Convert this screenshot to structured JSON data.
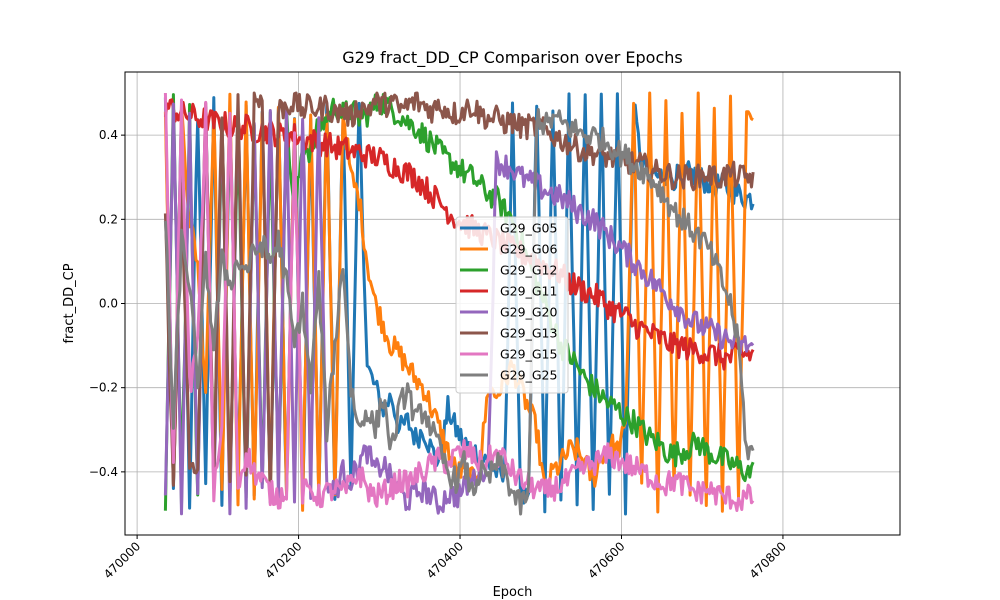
{
  "chart_data": {
    "type": "line",
    "title": "G29 fract_DD_CP Comparison over Epochs",
    "xlabel": "Epoch",
    "ylabel": "fract_DD_CP",
    "xlim": [
      469985,
      470945
    ],
    "ylim": [
      -0.55,
      0.55
    ],
    "x_ticks": [
      470000,
      470200,
      470400,
      470600,
      470800
    ],
    "y_ticks": [
      -0.4,
      -0.2,
      0.0,
      0.2,
      0.4
    ],
    "x_tick_labels": [
      "470000",
      "470200",
      "470400",
      "470600",
      "470800"
    ],
    "y_tick_labels": [
      "−0.4",
      "−0.2",
      "0.0",
      "0.2",
      "0.4"
    ],
    "grid": true,
    "legend": "center",
    "x_start": 470035,
    "x_step": 10,
    "series": [
      {
        "name": "G29_G05",
        "color": "#1f77b4",
        "values": [
          0.48,
          -0.45,
          0.45,
          -0.47,
          0.46,
          -0.42,
          0.47,
          -0.48,
          0.45,
          -0.44,
          0.46,
          -0.45,
          0.47,
          -0.46,
          0.46,
          -0.45,
          0.44,
          -0.47,
          0.42,
          -0.46,
          0.47,
          -0.45,
          0.45,
          -0.43,
          0.47,
          -0.15,
          -0.2,
          -0.25,
          -0.22,
          -0.3,
          -0.28,
          -0.32,
          -0.3,
          -0.35,
          -0.38,
          -0.25,
          -0.3,
          -0.33,
          -0.35,
          -0.36,
          -0.38,
          -0.4,
          -0.42,
          0.45,
          -0.45,
          -0.48,
          0.48,
          -0.47,
          0.47,
          -0.49,
          0.48,
          -0.49,
          0.48,
          -0.48,
          0.49,
          -0.47,
          0.48,
          -0.48,
          0.47,
          0.33,
          0.32,
          0.3,
          0.31,
          0.3,
          0.3,
          0.31,
          0.3,
          0.29,
          0.28,
          0.28,
          0.27,
          0.26,
          0.25
        ]
      },
      {
        "name": "G29_G06",
        "color": "#ff7f0e",
        "values": [
          0.47,
          -0.45,
          0.46,
          0.2,
          0.1,
          -0.2,
          0.48,
          -0.46,
          0.48,
          -0.47,
          0.47,
          -0.48,
          0.45,
          -0.46,
          0.47,
          -0.48,
          0.44,
          -0.47,
          0.46,
          -0.45,
          0.45,
          -0.47,
          0.46,
          0.3,
          0.25,
          0.1,
          0.0,
          -0.05,
          -0.1,
          -0.12,
          -0.15,
          -0.18,
          -0.2,
          -0.25,
          -0.3,
          -0.35,
          -0.4,
          -0.4,
          -0.42,
          -0.38,
          -0.2,
          -0.22,
          -0.18,
          -0.15,
          -0.2,
          -0.25,
          -0.3,
          -0.45,
          -0.4,
          -0.38,
          -0.35,
          -0.35,
          -0.38,
          -0.42,
          -0.36,
          -0.33,
          -0.35,
          -0.3,
          0.48,
          -0.45,
          0.49,
          -0.47,
          0.49,
          -0.46,
          0.48,
          -0.48,
          0.49,
          -0.45,
          0.48,
          -0.47,
          0.48,
          -0.46,
          0.45
        ]
      },
      {
        "name": "G29_G12",
        "color": "#2ca02c",
        "values": [
          -0.48,
          0.47,
          -0.45,
          0.45,
          -0.46,
          0.47,
          -0.44,
          0.45,
          -0.47,
          0.43,
          -0.46,
          0.45,
          -0.45,
          0.44,
          -0.43,
          0.44,
          0.2,
          0.38,
          0.36,
          0.42,
          0.44,
          0.47,
          0.45,
          0.46,
          0.44,
          0.45,
          0.47,
          0.48,
          0.46,
          0.45,
          0.43,
          0.42,
          0.4,
          0.38,
          0.36,
          0.34,
          0.33,
          0.31,
          0.3,
          0.28,
          0.26,
          0.25,
          0.22,
          0.2,
          0.15,
          0.1,
          0.05,
          0.0,
          -0.05,
          -0.1,
          -0.12,
          -0.15,
          -0.18,
          -0.2,
          -0.22,
          -0.24,
          -0.25,
          -0.27,
          -0.28,
          -0.3,
          -0.32,
          -0.33,
          -0.35,
          -0.36,
          -0.35,
          -0.34,
          -0.33,
          -0.35,
          -0.36,
          -0.37,
          -0.38,
          -0.39,
          -0.4
        ]
      },
      {
        "name": "G29_G11",
        "color": "#d62728",
        "values": [
          0.47,
          0.46,
          0.45,
          0.45,
          0.44,
          0.44,
          0.43,
          0.43,
          0.42,
          0.42,
          0.42,
          0.41,
          0.41,
          0.41,
          0.4,
          0.4,
          0.4,
          0.39,
          0.39,
          0.38,
          0.38,
          0.37,
          0.37,
          0.36,
          0.36,
          0.35,
          0.35,
          0.34,
          0.33,
          0.32,
          0.31,
          0.3,
          0.28,
          0.26,
          0.24,
          0.22,
          0.2,
          0.19,
          0.18,
          0.17,
          0.16,
          0.15,
          0.14,
          0.13,
          0.12,
          0.11,
          0.1,
          0.09,
          0.08,
          0.07,
          0.05,
          0.04,
          0.03,
          0.02,
          0.01,
          -0.01,
          -0.02,
          -0.03,
          -0.05,
          -0.06,
          -0.07,
          -0.08,
          -0.09,
          -0.1,
          -0.1,
          -0.11,
          -0.11,
          -0.12,
          -0.12,
          -0.13,
          -0.13,
          -0.12,
          -0.12
        ]
      },
      {
        "name": "G29_G20",
        "color": "#9467bd",
        "values": [
          -0.46,
          0.45,
          -0.47,
          0.44,
          -0.45,
          0.46,
          -0.46,
          0.46,
          -0.48,
          0.47,
          -0.47,
          0.45,
          -0.46,
          0.47,
          -0.44,
          0.45,
          -0.45,
          0.46,
          -0.44,
          0.45,
          -0.43,
          -0.45,
          -0.4,
          -0.42,
          -0.38,
          -0.35,
          -0.4,
          -0.38,
          -0.42,
          -0.45,
          -0.47,
          -0.45,
          -0.44,
          -0.46,
          -0.48,
          -0.45,
          -0.46,
          -0.44,
          -0.42,
          -0.4,
          -0.38,
          0.34,
          0.33,
          0.32,
          0.3,
          0.29,
          0.28,
          0.27,
          0.26,
          0.25,
          0.24,
          0.22,
          0.21,
          0.2,
          0.18,
          0.16,
          0.14,
          0.12,
          0.1,
          0.08,
          0.06,
          0.04,
          0.02,
          0.0,
          -0.02,
          -0.04,
          -0.05,
          -0.06,
          -0.07,
          -0.08,
          -0.09,
          -0.1,
          -0.1
        ]
      },
      {
        "name": "G29_G13",
        "color": "#8c564b",
        "values": [
          0.2,
          -0.45,
          0.3,
          -0.4,
          -0.4,
          0.48,
          -0.42,
          0.47,
          -0.44,
          0.48,
          -0.43,
          0.49,
          0.48,
          -0.45,
          0.46,
          0.47,
          0.48,
          0.46,
          0.47,
          0.46,
          0.47,
          0.45,
          0.46,
          0.44,
          0.47,
          0.46,
          0.48,
          0.47,
          0.48,
          0.46,
          0.47,
          0.48,
          0.47,
          0.46,
          0.47,
          0.46,
          0.45,
          0.46,
          0.47,
          0.45,
          0.44,
          0.44,
          0.43,
          0.43,
          0.42,
          0.42,
          0.42,
          0.41,
          0.4,
          0.39,
          0.38,
          0.37,
          0.36,
          0.36,
          0.35,
          0.35,
          0.34,
          0.34,
          0.33,
          0.33,
          0.32,
          0.31,
          0.31,
          0.3,
          0.3,
          0.3,
          0.3,
          0.31,
          0.3,
          0.3,
          0.31,
          0.3,
          0.3
        ]
      },
      {
        "name": "G29_G15",
        "color": "#e377c2",
        "values": [
          0.48,
          -0.4,
          0.46,
          -0.2,
          -0.1,
          0.45,
          -0.45,
          -0.3,
          0.46,
          -0.44,
          -0.35,
          -0.4,
          -0.42,
          -0.45,
          -0.46,
          -0.44,
          0.4,
          -0.45,
          -0.44,
          -0.46,
          -0.45,
          -0.44,
          -0.45,
          -0.43,
          -0.4,
          -0.44,
          -0.46,
          -0.45,
          -0.44,
          -0.42,
          -0.43,
          -0.41,
          -0.4,
          -0.38,
          -0.37,
          -0.38,
          -0.36,
          -0.35,
          -0.36,
          -0.38,
          -0.37,
          -0.36,
          -0.37,
          -0.4,
          -0.42,
          -0.43,
          -0.44,
          -0.45,
          -0.44,
          -0.43,
          -0.42,
          -0.4,
          -0.39,
          -0.38,
          -0.37,
          -0.36,
          -0.37,
          -0.38,
          -0.39,
          -0.4,
          -0.41,
          -0.42,
          -0.43,
          -0.42,
          -0.43,
          -0.44,
          -0.45,
          -0.44,
          -0.45,
          -0.46,
          -0.46,
          -0.47,
          -0.46
        ]
      },
      {
        "name": "G29_G25",
        "color": "#7f7f7f",
        "values": [
          0.2,
          -0.3,
          0.15,
          0.05,
          -0.2,
          0.1,
          -0.1,
          0.1,
          0.05,
          0.1,
          0.08,
          0.12,
          0.14,
          0.1,
          0.15,
          0.05,
          -0.1,
          0.0,
          -0.2,
          0.05,
          -0.3,
          -0.1,
          0.1,
          -0.2,
          -0.3,
          -0.25,
          -0.3,
          -0.22,
          -0.35,
          -0.25,
          -0.2,
          -0.28,
          -0.25,
          -0.3,
          -0.35,
          -0.4,
          -0.42,
          -0.38,
          -0.45,
          -0.4,
          -0.42,
          -0.38,
          -0.4,
          -0.45,
          -0.48,
          -0.45,
          0.45,
          0.42,
          0.44,
          0.43,
          0.42,
          0.41,
          0.4,
          0.4,
          0.39,
          0.38,
          0.36,
          0.35,
          0.33,
          0.32,
          0.3,
          0.28,
          0.25,
          0.22,
          0.2,
          0.18,
          0.16,
          0.14,
          0.1,
          0.05,
          0.0,
          -0.1,
          -0.35
        ]
      }
    ]
  }
}
